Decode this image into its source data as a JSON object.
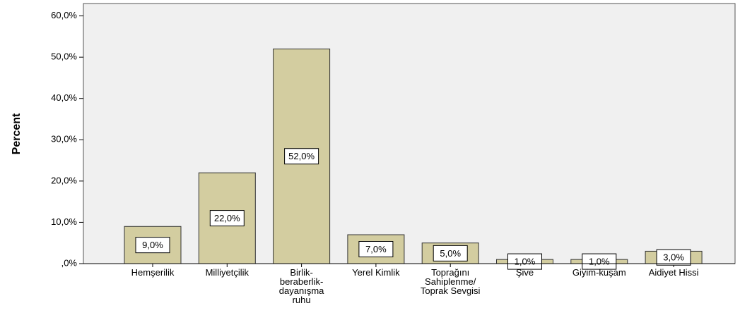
{
  "chart_data": {
    "type": "bar",
    "ylabel": "Percent",
    "categories": [
      "Hemşerilik",
      "Milliyetçilik",
      "Birlik-beraberlik-dayanışma ruhu",
      "Yerel Kimlik",
      "Toprağını Sahiplenme/ Toprak Sevgisi",
      "Şive",
      "Giyim-kuşam",
      "Aidiyet Hissi"
    ],
    "values": [
      9,
      22,
      52,
      7,
      5,
      1,
      1,
      3
    ],
    "value_labels": [
      "9,0%",
      "22,0%",
      "52,0%",
      "7,0%",
      "5,0%",
      "1,0%",
      "1,0%",
      "3,0%"
    ],
    "color": "#d3cda0",
    "ylim": [
      0,
      63
    ],
    "yticks": [
      {
        "value": 0,
        "label": ",0%"
      },
      {
        "value": 10,
        "label": "10,0%"
      },
      {
        "value": 20,
        "label": "20,0%"
      },
      {
        "value": 30,
        "label": "30,0%"
      },
      {
        "value": 40,
        "label": "40,0%"
      },
      {
        "value": 50,
        "label": "50,0%"
      },
      {
        "value": 60,
        "label": "60,0%"
      }
    ],
    "grid": false
  }
}
